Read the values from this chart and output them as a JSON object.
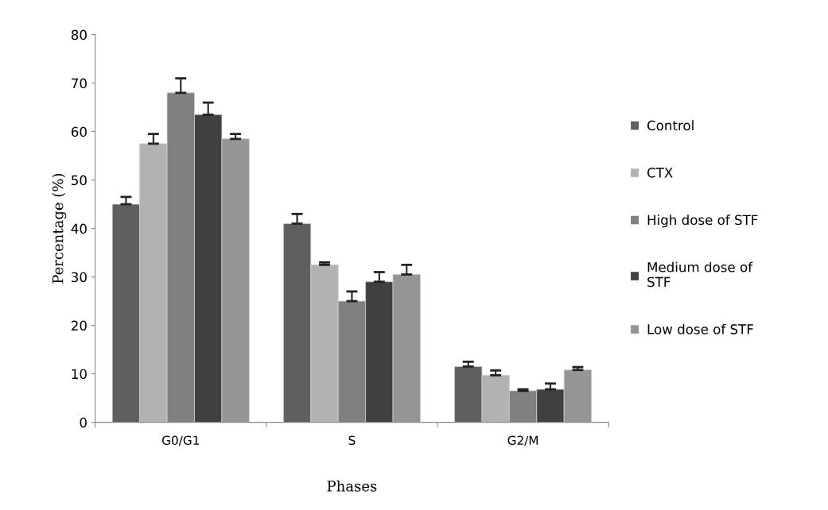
{
  "chart_data": {
    "type": "bar",
    "xlabel": "Phases",
    "ylabel": "Percentage (%)",
    "categories": [
      "G0/G1",
      "S",
      "G2/M"
    ],
    "series": [
      {
        "name": "Control",
        "color": "#5f5f5f",
        "values": [
          45,
          41,
          11.5
        ],
        "errors": [
          [
            45,
            46.5
          ],
          [
            41,
            43
          ],
          [
            11.5,
            12.5
          ]
        ]
      },
      {
        "name": "CTX",
        "color": "#b2b2b2",
        "values": [
          57.5,
          32.5,
          9.7
        ],
        "errors": [
          [
            57.5,
            59.5
          ],
          [
            32.5,
            33
          ],
          [
            9.7,
            10.7
          ]
        ]
      },
      {
        "name": "High dose of STF",
        "color": "#808080",
        "values": [
          68,
          25,
          6.5
        ],
        "errors": [
          [
            68,
            71
          ],
          [
            25,
            27
          ],
          [
            6.5,
            6.8
          ]
        ]
      },
      {
        "name": "Medium dose of\nSTF",
        "color": "#404040",
        "values": [
          63.5,
          29,
          6.8
        ],
        "errors": [
          [
            63.5,
            66
          ],
          [
            29,
            31
          ],
          [
            6.8,
            8
          ]
        ]
      },
      {
        "name": "Low dose of STF",
        "color": "#959595",
        "values": [
          58.5,
          30.5,
          10.8
        ],
        "errors": [
          [
            58.5,
            59.5
          ],
          [
            30.5,
            32.5
          ],
          [
            10.8,
            11.4
          ]
        ]
      }
    ],
    "ylim": [
      0,
      80
    ],
    "yticks": [
      0,
      10,
      20,
      30,
      40,
      50,
      60,
      70,
      80
    ],
    "grid": false,
    "legend": "right"
  }
}
